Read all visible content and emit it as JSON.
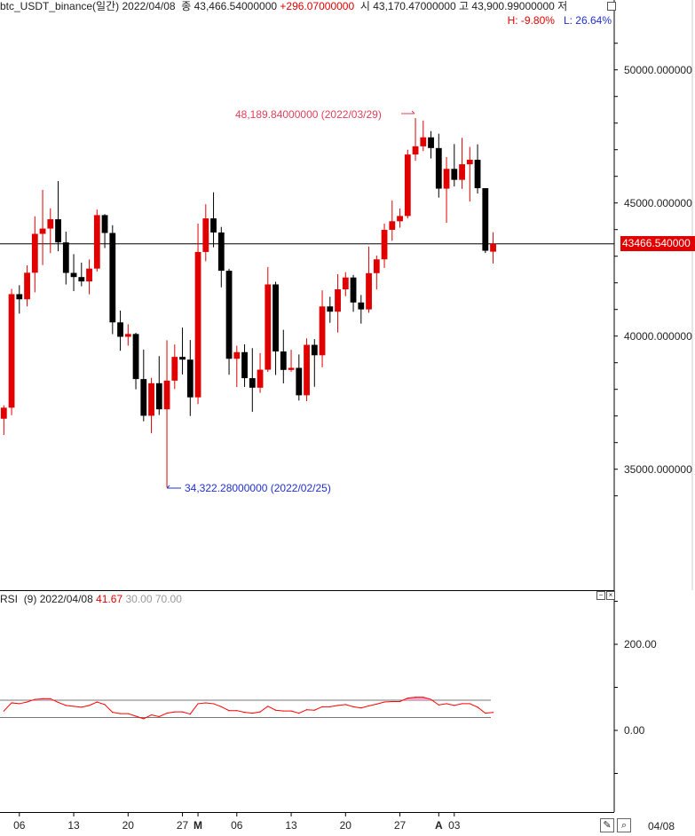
{
  "header": {
    "symbol": "btc_USDT_binance(일간)",
    "date": "2022/04/08",
    "close_label": "종",
    "close": "43,466.54000000",
    "change": "+296.07000000",
    "open_label": "시",
    "open": "43,170.47000000",
    "high_label": "고",
    "high": "43,900.99000000",
    "low_label": "저",
    "high_pct": "H: -9.80%",
    "low_pct": "L: 26.64%"
  },
  "annotations": {
    "max": "48,189.84000000 (2022/03/29)",
    "min": "34,322.28000000 (2022/02/25)"
  },
  "current_price_tag": "43466.540000",
  "rsi_header": {
    "name": "RSI",
    "period": "(9)",
    "date": "2022/04/08",
    "value": "41.67",
    "lower": "30.00",
    "upper": "70.00"
  },
  "footer": {
    "last_date": "04/08"
  },
  "colors": {
    "up": "#e00000",
    "down": "#000000",
    "rsi_line": "#ff0000",
    "overbought_fill": "#f7a0c8",
    "current_price": "#e00000",
    "annotation_max": "#e0405a",
    "annotation_min": "#2030d0"
  },
  "chart_data": [
    {
      "type": "candlestick",
      "title": "btc_USDT_binance(일간)",
      "ylim": [
        25000,
        51000
      ],
      "y_ticks": [
        "50000.000000",
        "45000.000000",
        "40000.000000",
        "35000.000000"
      ],
      "y_tick_values": [
        50000,
        45000,
        40000,
        35000
      ],
      "x_tick_labels": [
        {
          "date": "02/06",
          "label": "06"
        },
        {
          "date": "02/13",
          "label": "13"
        },
        {
          "date": "02/20",
          "label": "20"
        },
        {
          "date": "02/27",
          "label": "27"
        },
        {
          "date": "03/01",
          "label": "M"
        },
        {
          "date": "03/06",
          "label": "06"
        },
        {
          "date": "03/13",
          "label": "13"
        },
        {
          "date": "03/20",
          "label": "20"
        },
        {
          "date": "03/27",
          "label": "27"
        },
        {
          "date": "04/01",
          "label": "A"
        },
        {
          "date": "04/03",
          "label": "03"
        }
      ],
      "current_price": 43466.54,
      "candles": [
        {
          "date": "02/04",
          "open": 36897,
          "high": 37400,
          "low": 36290,
          "close": 37311
        },
        {
          "date": "02/05",
          "open": 37311,
          "high": 41772,
          "low": 37030,
          "close": 41575
        },
        {
          "date": "02/06",
          "open": 41575,
          "high": 41913,
          "low": 40844,
          "close": 41382
        },
        {
          "date": "02/07",
          "open": 41382,
          "high": 42656,
          "low": 41116,
          "close": 42380
        },
        {
          "date": "02/08",
          "open": 42380,
          "high": 44500,
          "low": 41645,
          "close": 43840
        },
        {
          "date": "02/09",
          "open": 43840,
          "high": 45492,
          "low": 42667,
          "close": 44038
        },
        {
          "date": "02/10",
          "open": 44038,
          "high": 44799,
          "low": 43117,
          "close": 44388
        },
        {
          "date": "02/11",
          "open": 44388,
          "high": 45821,
          "low": 43187,
          "close": 43519
        },
        {
          "date": "02/12",
          "open": 43519,
          "high": 43920,
          "low": 41938,
          "close": 42373
        },
        {
          "date": "02/13",
          "open": 42373,
          "high": 43079,
          "low": 41688,
          "close": 42217
        },
        {
          "date": "02/14",
          "open": 42217,
          "high": 42760,
          "low": 41870,
          "close": 42053
        },
        {
          "date": "02/15",
          "open": 42053,
          "high": 42876,
          "low": 41570,
          "close": 42535
        },
        {
          "date": "02/16",
          "open": 42535,
          "high": 44751,
          "low": 42427,
          "close": 44544
        },
        {
          "date": "02/17",
          "open": 44544,
          "high": 44581,
          "low": 43307,
          "close": 43873
        },
        {
          "date": "02/18",
          "open": 43873,
          "high": 44164,
          "low": 40073,
          "close": 40515
        },
        {
          "date": "02/19",
          "open": 40515,
          "high": 40959,
          "low": 39450,
          "close": 39974
        },
        {
          "date": "02/20",
          "open": 39974,
          "high": 40444,
          "low": 39639,
          "close": 40079
        },
        {
          "date": "02/21",
          "open": 40079,
          "high": 40125,
          "low": 38000,
          "close": 38386
        },
        {
          "date": "02/22",
          "open": 38386,
          "high": 39494,
          "low": 36800,
          "close": 37008
        },
        {
          "date": "02/23",
          "open": 37008,
          "high": 38429,
          "low": 36350,
          "close": 38230
        },
        {
          "date": "02/24",
          "open": 38230,
          "high": 39249,
          "low": 37036,
          "close": 37250
        },
        {
          "date": "02/25",
          "open": 37250,
          "high": 39843,
          "low": 34322.28,
          "close": 38327
        },
        {
          "date": "02/26",
          "open": 38327,
          "high": 39683,
          "low": 38014,
          "close": 39219
        },
        {
          "date": "02/27",
          "open": 39219,
          "high": 40320,
          "low": 38558,
          "close": 39116
        },
        {
          "date": "02/28",
          "open": 39116,
          "high": 39855,
          "low": 37000,
          "close": 37700
        },
        {
          "date": "03/01",
          "open": 37700,
          "high": 44225,
          "low": 37450,
          "close": 43160
        },
        {
          "date": "03/02",
          "open": 43160,
          "high": 44950,
          "low": 42809,
          "close": 44421
        },
        {
          "date": "03/03",
          "open": 44421,
          "high": 45400,
          "low": 43334,
          "close": 43892
        },
        {
          "date": "03/04",
          "open": 43892,
          "high": 44101,
          "low": 41832,
          "close": 42454
        },
        {
          "date": "03/05",
          "open": 42454,
          "high": 42527,
          "low": 38550,
          "close": 39148
        },
        {
          "date": "03/06",
          "open": 39148,
          "high": 39640,
          "low": 38086,
          "close": 39397
        },
        {
          "date": "03/07",
          "open": 39397,
          "high": 39693,
          "low": 38088,
          "close": 38420
        },
        {
          "date": "03/08",
          "open": 38420,
          "high": 39547,
          "low": 37155,
          "close": 38062
        },
        {
          "date": "03/09",
          "open": 38062,
          "high": 39362,
          "low": 37867,
          "close": 38738
        },
        {
          "date": "03/10",
          "open": 38738,
          "high": 42594,
          "low": 38656,
          "close": 41941
        },
        {
          "date": "03/11",
          "open": 41941,
          "high": 42039,
          "low": 38539,
          "close": 39422
        },
        {
          "date": "03/12",
          "open": 39422,
          "high": 40236,
          "low": 38223,
          "close": 38730
        },
        {
          "date": "03/13",
          "open": 38730,
          "high": 39486,
          "low": 38660,
          "close": 38807
        },
        {
          "date": "03/14",
          "open": 38807,
          "high": 39310,
          "low": 37578,
          "close": 37777
        },
        {
          "date": "03/15",
          "open": 37777,
          "high": 39914,
          "low": 37555,
          "close": 39671
        },
        {
          "date": "03/16",
          "open": 39671,
          "high": 39887,
          "low": 38098,
          "close": 39280
        },
        {
          "date": "03/17",
          "open": 39280,
          "high": 41718,
          "low": 38828,
          "close": 41114
        },
        {
          "date": "03/18",
          "open": 41114,
          "high": 41478,
          "low": 40500,
          "close": 40917
        },
        {
          "date": "03/19",
          "open": 40917,
          "high": 42325,
          "low": 40135,
          "close": 41757
        },
        {
          "date": "03/20",
          "open": 41757,
          "high": 42400,
          "low": 41499,
          "close": 42201
        },
        {
          "date": "03/21",
          "open": 42201,
          "high": 42296,
          "low": 40911,
          "close": 41262
        },
        {
          "date": "03/22",
          "open": 41262,
          "high": 41544,
          "low": 40467,
          "close": 41002
        },
        {
          "date": "03/23",
          "open": 41002,
          "high": 43361,
          "low": 40875,
          "close": 42364
        },
        {
          "date": "03/24",
          "open": 42364,
          "high": 43025,
          "low": 41751,
          "close": 42882
        },
        {
          "date": "03/25",
          "open": 42882,
          "high": 44220,
          "low": 42560,
          "close": 43991
        },
        {
          "date": "03/26",
          "open": 43991,
          "high": 45094,
          "low": 43579,
          "close": 44313
        },
        {
          "date": "03/27",
          "open": 44313,
          "high": 44792,
          "low": 44071,
          "close": 44511
        },
        {
          "date": "03/28",
          "open": 44511,
          "high": 46999,
          "low": 44422,
          "close": 46820
        },
        {
          "date": "03/29",
          "open": 46820,
          "high": 48189.84,
          "low": 46586,
          "close": 47128
        },
        {
          "date": "03/30",
          "open": 47128,
          "high": 48096,
          "low": 46950,
          "close": 47465
        },
        {
          "date": "03/31",
          "open": 47465,
          "high": 47700,
          "low": 46671,
          "close": 47062
        },
        {
          "date": "04/01",
          "open": 47062,
          "high": 47600,
          "low": 45200,
          "close": 45538
        },
        {
          "date": "04/02",
          "open": 45538,
          "high": 46720,
          "low": 44255,
          "close": 46281
        },
        {
          "date": "04/03",
          "open": 46281,
          "high": 47213,
          "low": 45620,
          "close": 45868
        },
        {
          "date": "04/04",
          "open": 45868,
          "high": 47444,
          "low": 45530,
          "close": 46453
        },
        {
          "date": "04/05",
          "open": 46453,
          "high": 47106,
          "low": 45054,
          "close": 46622
        },
        {
          "date": "04/06",
          "open": 46622,
          "high": 47200,
          "low": 45353,
          "close": 45555
        },
        {
          "date": "04/07",
          "open": 45555,
          "high": 45555,
          "low": 43121,
          "close": 43206
        },
        {
          "date": "04/08",
          "open": 43170.47,
          "high": 43900.99,
          "low": 42727,
          "close": 43466.54
        }
      ]
    },
    {
      "type": "line",
      "title": "RSI (9)",
      "ylim": [
        -190,
        323
      ],
      "y_ticks": [
        "200.00",
        "0.00"
      ],
      "y_tick_values": [
        200,
        0
      ],
      "levels": [
        30,
        70
      ],
      "series": [
        {
          "name": "RSI",
          "values": [
            45,
            64,
            62,
            66,
            72,
            73.5,
            73.5,
            65,
            58,
            56,
            54,
            58,
            66,
            60,
            42,
            39,
            39,
            33,
            27,
            36,
            32,
            40,
            43,
            43,
            38,
            62,
            64,
            62,
            55,
            46,
            46,
            42,
            40,
            43,
            56,
            47,
            45,
            45,
            40,
            48,
            47,
            55,
            55,
            58,
            60,
            55,
            52,
            57,
            61,
            66,
            67,
            67,
            75,
            77,
            77,
            72,
            59,
            62,
            58,
            62,
            62,
            54,
            40,
            41.67
          ]
        }
      ]
    }
  ]
}
